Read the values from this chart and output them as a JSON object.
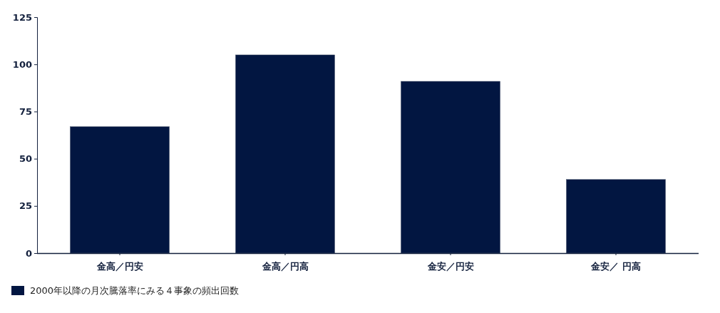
{
  "chart_data": {
    "type": "bar",
    "categories": [
      "金高／円安",
      "金高／円高",
      "金安／円安",
      "金安／ 円高"
    ],
    "series": [
      {
        "name": "2000年以降の月次騰落率にみる４事象の頻出回数",
        "color": "#021641",
        "values": [
          67,
          105,
          91,
          39
        ]
      }
    ],
    "ylim": [
      0,
      125
    ],
    "yticks": [
      0,
      25,
      50,
      75,
      100,
      125
    ],
    "grid": false,
    "legend": "bottom left"
  }
}
